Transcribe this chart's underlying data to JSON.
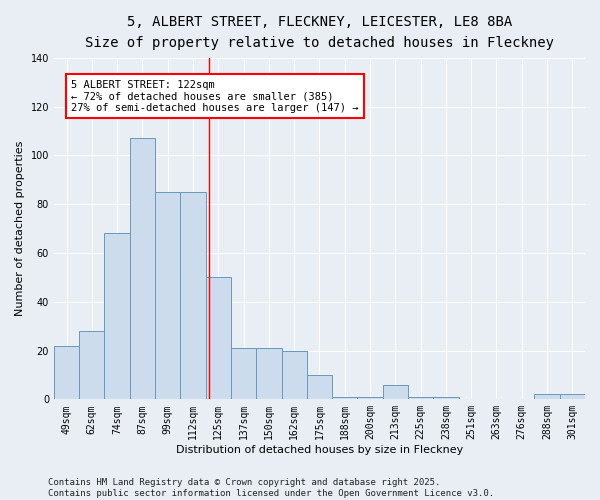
{
  "title_line1": "5, ALBERT STREET, FLECKNEY, LEICESTER, LE8 8BA",
  "title_line2": "Size of property relative to detached houses in Fleckney",
  "xlabel": "Distribution of detached houses by size in Fleckney",
  "ylabel": "Number of detached properties",
  "categories": [
    "49sqm",
    "62sqm",
    "74sqm",
    "87sqm",
    "99sqm",
    "112sqm",
    "125sqm",
    "137sqm",
    "150sqm",
    "162sqm",
    "175sqm",
    "188sqm",
    "200sqm",
    "213sqm",
    "225sqm",
    "238sqm",
    "251sqm",
    "263sqm",
    "276sqm",
    "288sqm",
    "301sqm"
  ],
  "values": [
    22,
    28,
    68,
    107,
    85,
    85,
    50,
    21,
    21,
    20,
    10,
    1,
    1,
    6,
    1,
    1,
    0,
    0,
    0,
    2,
    2
  ],
  "bar_color": "#ccdcec",
  "bar_edge_color": "#6699bb",
  "annotation_text": "5 ALBERT STREET: 122sqm\n← 72% of detached houses are smaller (385)\n27% of semi-detached houses are larger (147) →",
  "annotation_box_color": "white",
  "annotation_box_edge_color": "red",
  "vline_x": 5.62,
  "vline_color": "red",
  "ylim": [
    0,
    140
  ],
  "yticks": [
    0,
    20,
    40,
    60,
    80,
    100,
    120,
    140
  ],
  "bg_color": "#e8eef4",
  "plot_bg_color": "#e8eef4",
  "footer_line1": "Contains HM Land Registry data © Crown copyright and database right 2025.",
  "footer_line2": "Contains public sector information licensed under the Open Government Licence v3.0.",
  "title_fontsize": 10,
  "subtitle_fontsize": 9,
  "axis_label_fontsize": 8,
  "tick_fontsize": 7,
  "annotation_fontsize": 7.5,
  "footer_fontsize": 6.5
}
